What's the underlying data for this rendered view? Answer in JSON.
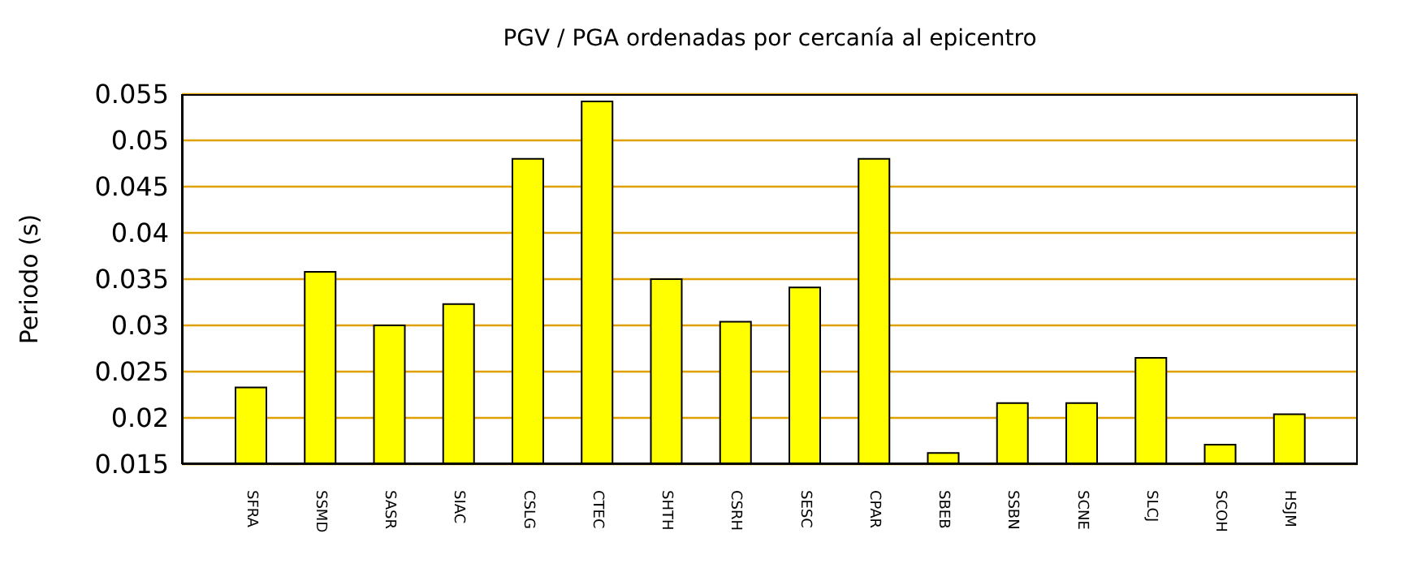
{
  "chart_data": {
    "type": "bar",
    "title": "PGV / PGA ordenadas por cercanía al epicentro",
    "ylabel": "Periodo (s)",
    "categories": [
      "SFRA",
      "SSMD",
      "SASR",
      "SIAC",
      "CSLG",
      "CTEC",
      "SHTH",
      "CSRH",
      "SESC",
      "CPAR",
      "SBEB",
      "SSBN",
      "SCNE",
      "SLCJ",
      "SCOH",
      "HSJM"
    ],
    "values": [
      0.0233,
      0.0358,
      0.03,
      0.0323,
      0.048,
      0.0542,
      0.035,
      0.0304,
      0.0341,
      0.048,
      0.0162,
      0.0216,
      0.0216,
      0.0265,
      0.0171,
      0.0204
    ],
    "color": "#ffff00",
    "ylim": [
      0.015,
      0.055
    ],
    "yticks": [
      0.015,
      0.02,
      0.025,
      0.03,
      0.035,
      0.04,
      0.045,
      0.05,
      0.055
    ],
    "grid": "y"
  }
}
